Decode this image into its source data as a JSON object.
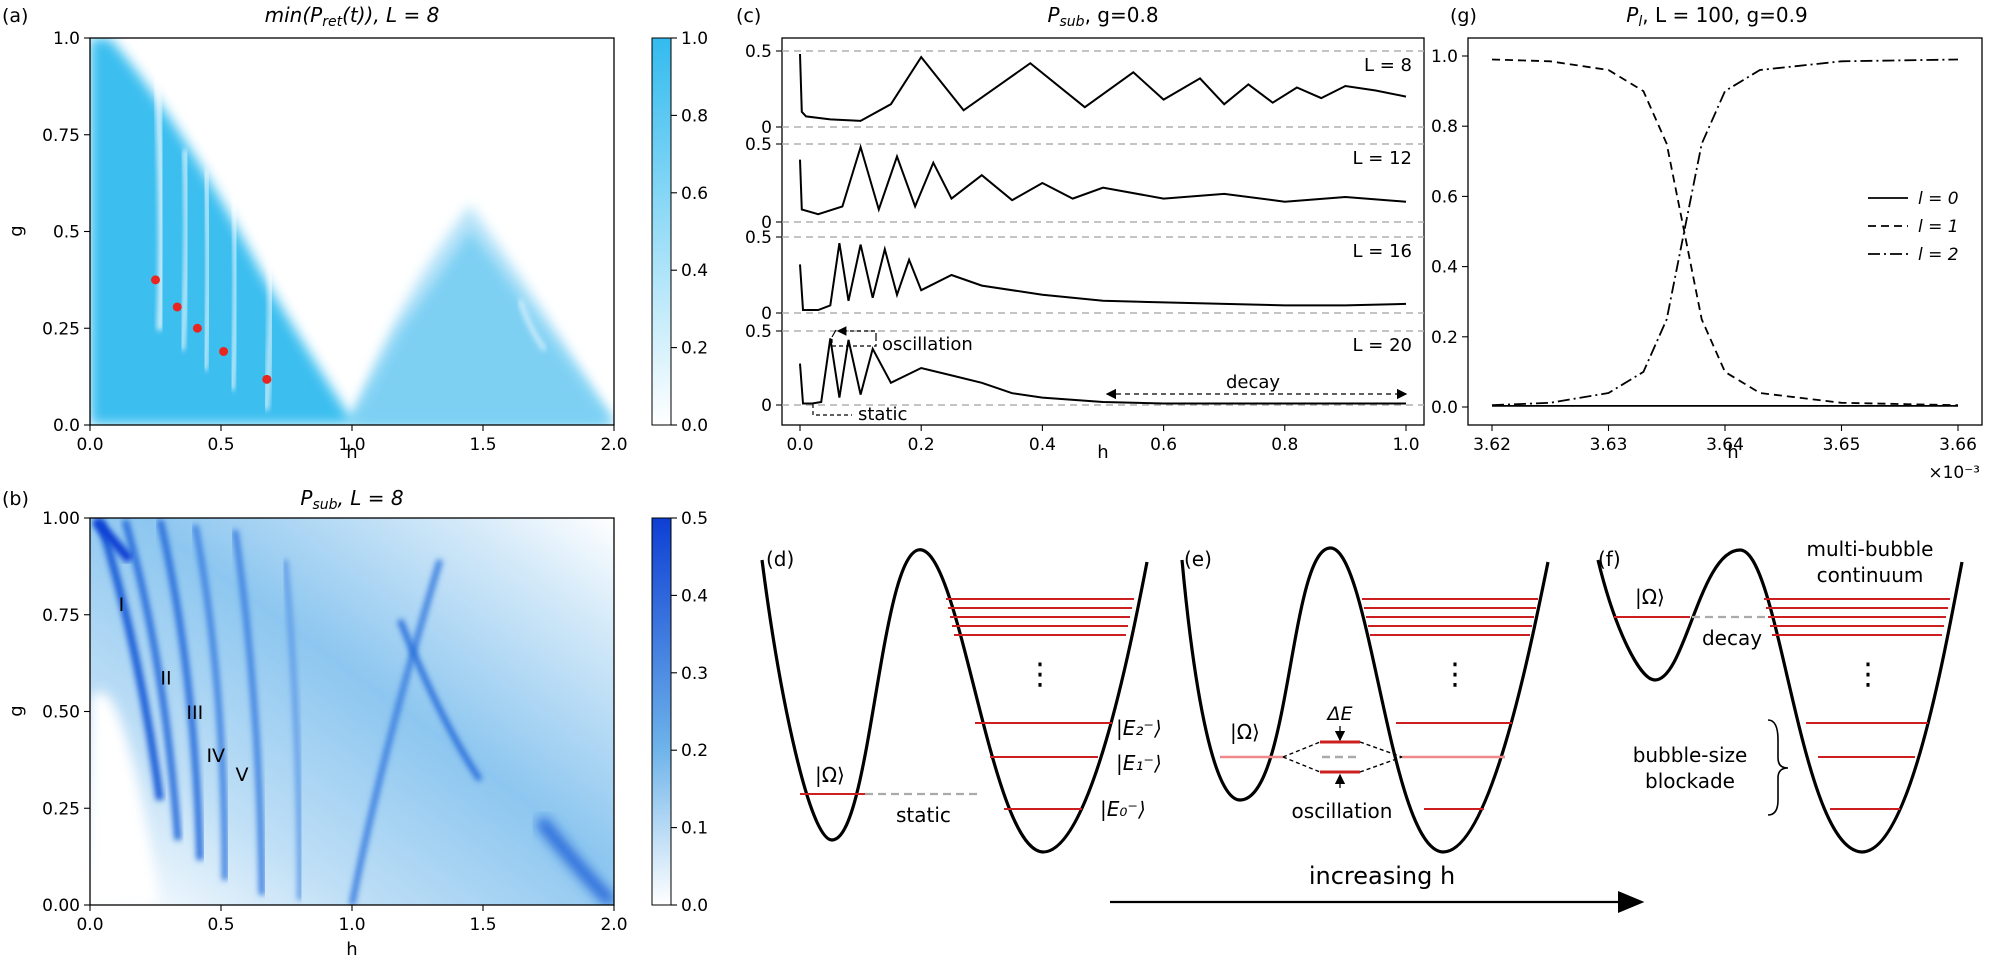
{
  "chart_data": [
    {
      "panel": "(a)",
      "type": "heatmap",
      "title": "min(P_ret(t)), L = 8",
      "title_main": "min(P",
      "title_sub": "ret",
      "title_rest": "(t)), L = 8",
      "xlabel": "h",
      "ylabel": "g",
      "xlim": [
        0,
        2
      ],
      "ylim": [
        0,
        1
      ],
      "xticks": [
        "0.0",
        "0.5",
        "1.0",
        "1.5",
        "2.0"
      ],
      "yticks": [
        "0.0",
        "0.25",
        "0.5",
        "0.75",
        "1.0"
      ],
      "colorbar": {
        "range": [
          0,
          1
        ],
        "ticks": [
          "0.0",
          "0.2",
          "0.4",
          "0.6",
          "0.8",
          "1.0"
        ],
        "color": "#33bbef"
      },
      "markers": [
        {
          "h": 0.25,
          "g": 0.375
        },
        {
          "h": 0.333,
          "g": 0.305
        },
        {
          "h": 0.41,
          "g": 0.25
        },
        {
          "h": 0.51,
          "g": 0.19
        },
        {
          "h": 0.675,
          "g": 0.118
        }
      ]
    },
    {
      "panel": "(b)",
      "type": "heatmap",
      "title": "P_sub, L = 8",
      "title_main": "P",
      "title_sub": "sub",
      "title_rest": ", L = 8",
      "xlabel": "h",
      "ylabel": "g",
      "xlim": [
        0,
        2
      ],
      "ylim": [
        0,
        1
      ],
      "xticks": [
        "0.0",
        "0.5",
        "1.0",
        "1.5",
        "2.0"
      ],
      "yticks": [
        "0.00",
        "0.25",
        "0.50",
        "0.75",
        "1.00"
      ],
      "colorbar": {
        "range": [
          0,
          0.5
        ],
        "ticks": [
          "0.0",
          "0.1",
          "0.2",
          "0.3",
          "0.4",
          "0.5"
        ],
        "color": "#0e3fd4"
      },
      "region_labels": [
        {
          "text": "I",
          "h": 0.12,
          "g": 0.76
        },
        {
          "text": "II",
          "h": 0.29,
          "g": 0.57
        },
        {
          "text": "III",
          "h": 0.4,
          "g": 0.48
        },
        {
          "text": "IV",
          "h": 0.48,
          "g": 0.37
        },
        {
          "text": "V",
          "h": 0.58,
          "g": 0.32
        }
      ]
    },
    {
      "panel": "(c)",
      "type": "line",
      "title": "P_sub, g=0.8",
      "title_main": "P",
      "title_sub": "sub",
      "title_rest": ", g=0.8",
      "xlabel": "h",
      "xlim": [
        0,
        1
      ],
      "xticks": [
        "0.0",
        "0.2",
        "0.4",
        "0.6",
        "0.8",
        "1.0"
      ],
      "yticks": [
        "0",
        "0.5"
      ],
      "series": [
        {
          "name": "L = 8",
          "x": [
            0.0,
            0.003,
            0.01,
            0.05,
            0.1,
            0.15,
            0.2,
            0.27,
            0.38,
            0.47,
            0.55,
            0.6,
            0.66,
            0.7,
            0.74,
            0.78,
            0.82,
            0.86,
            0.9,
            0.95,
            1.0
          ],
          "y": [
            0.48,
            0.1,
            0.07,
            0.05,
            0.04,
            0.15,
            0.46,
            0.11,
            0.42,
            0.13,
            0.36,
            0.18,
            0.32,
            0.15,
            0.28,
            0.16,
            0.26,
            0.19,
            0.27,
            0.24,
            0.2
          ]
        },
        {
          "name": "L = 12",
          "x": [
            0.0,
            0.003,
            0.03,
            0.07,
            0.1,
            0.13,
            0.16,
            0.19,
            0.22,
            0.25,
            0.3,
            0.35,
            0.4,
            0.45,
            0.5,
            0.6,
            0.7,
            0.8,
            0.9,
            1.0
          ],
          "y": [
            0.4,
            0.08,
            0.05,
            0.1,
            0.48,
            0.08,
            0.42,
            0.1,
            0.38,
            0.15,
            0.3,
            0.14,
            0.25,
            0.15,
            0.22,
            0.15,
            0.18,
            0.13,
            0.16,
            0.13
          ]
        },
        {
          "name": "L = 16",
          "x": [
            0.0,
            0.005,
            0.03,
            0.05,
            0.065,
            0.08,
            0.1,
            0.12,
            0.14,
            0.16,
            0.18,
            0.2,
            0.25,
            0.3,
            0.4,
            0.5,
            0.6,
            0.7,
            0.8,
            0.9,
            1.0
          ],
          "y": [
            0.32,
            0.02,
            0.02,
            0.05,
            0.46,
            0.08,
            0.45,
            0.1,
            0.42,
            0.12,
            0.35,
            0.15,
            0.25,
            0.18,
            0.12,
            0.08,
            0.07,
            0.06,
            0.05,
            0.05,
            0.06
          ]
        },
        {
          "name": "L = 20",
          "x": [
            0.0,
            0.005,
            0.02,
            0.035,
            0.05,
            0.065,
            0.08,
            0.1,
            0.12,
            0.15,
            0.2,
            0.25,
            0.3,
            0.35,
            0.4,
            0.5,
            0.6,
            0.8,
            1.0
          ],
          "y": [
            0.28,
            0.01,
            0.01,
            0.02,
            0.45,
            0.05,
            0.44,
            0.07,
            0.38,
            0.15,
            0.25,
            0.2,
            0.15,
            0.08,
            0.05,
            0.02,
            0.01,
            0.01,
            0.01
          ]
        }
      ],
      "annotations": [
        "oscillation",
        "decay",
        "static"
      ]
    },
    {
      "panel": "(g)",
      "type": "line",
      "title": "P_l, L = 100, g=0.9",
      "title_main": "P",
      "title_sub": "l",
      "title_rest": ", L = 100, g=0.9",
      "xlabel": "h",
      "x_multiplier": "×10⁻³",
      "xlim": [
        3.62,
        3.66
      ],
      "ylim": [
        0,
        1
      ],
      "xticks": [
        "3.62",
        "3.63",
        "3.64",
        "3.65",
        "3.66"
      ],
      "yticks": [
        "0.0",
        "0.2",
        "0.4",
        "0.6",
        "0.8",
        "1.0"
      ],
      "legend": {
        "position": "center-right"
      },
      "series": [
        {
          "name": "l = 0",
          "style": "solid",
          "x": [
            3.62,
            3.66
          ],
          "y": [
            0.003,
            0.003
          ]
        },
        {
          "name": "l = 1",
          "style": "dashed",
          "x": [
            3.62,
            3.625,
            3.63,
            3.633,
            3.635,
            3.6365,
            3.638,
            3.64,
            3.643,
            3.65,
            3.66
          ],
          "y": [
            0.99,
            0.985,
            0.96,
            0.9,
            0.75,
            0.5,
            0.25,
            0.1,
            0.04,
            0.012,
            0.005
          ]
        },
        {
          "name": "l = 2",
          "style": "dashdot",
          "x": [
            3.62,
            3.625,
            3.63,
            3.633,
            3.635,
            3.6365,
            3.638,
            3.64,
            3.643,
            3.65,
            3.66
          ],
          "y": [
            0.005,
            0.012,
            0.04,
            0.1,
            0.25,
            0.5,
            0.75,
            0.9,
            0.96,
            0.985,
            0.99
          ]
        }
      ]
    }
  ],
  "schematics": {
    "d": {
      "label": "(d)",
      "omega": "|Ω⟩",
      "static": "static",
      "e2": "|E₂⁻⟩",
      "e1": "|E₁⁻⟩",
      "e0": "|E₀⁻⟩",
      "dots": "⋮"
    },
    "e": {
      "label": "(e)",
      "omega": "|Ω⟩",
      "delta": "ΔE",
      "oscillation": "oscillation",
      "dots": "⋮"
    },
    "f": {
      "label": "(f)",
      "omega": "|Ω⟩",
      "decay": "decay",
      "continuum1": "multi-bubble",
      "continuum2": "continuum",
      "blockade1": "bubble-size",
      "blockade2": "blockade",
      "dots": "⋮"
    },
    "arrow_label": "increasing h"
  },
  "colors": {
    "red_marker": "#e8251f",
    "level_red": "#cc1f1f",
    "level_pink": "#f08a8a",
    "grey_dash": "#aaaaaa"
  }
}
